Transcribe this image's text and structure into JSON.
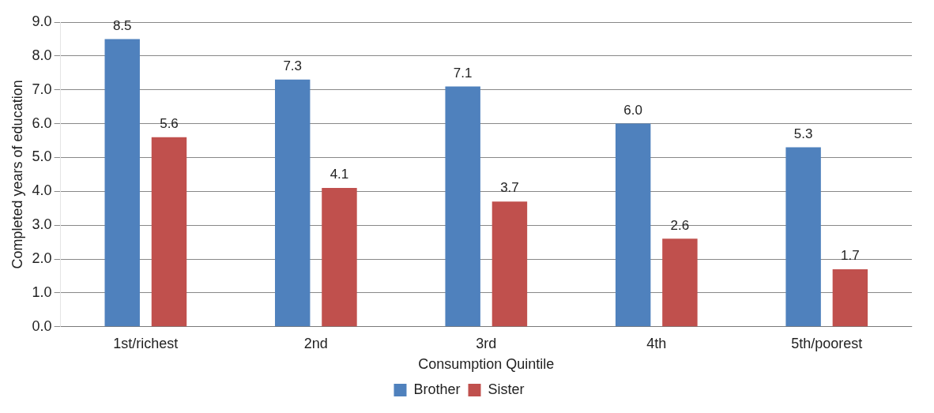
{
  "chart_data": {
    "type": "bar",
    "categories": [
      "1st/richest",
      "2nd",
      "3rd",
      "4th",
      "5th/poorest"
    ],
    "series": [
      {
        "name": "Brother",
        "color": "#4f81bd",
        "values": [
          8.5,
          7.3,
          7.1,
          6.0,
          5.3
        ],
        "value_labels": [
          "8.5",
          "7.3",
          "7.1",
          "6.0",
          "5.3"
        ]
      },
      {
        "name": "Sister",
        "color": "#c0504d",
        "values": [
          5.6,
          4.1,
          3.7,
          2.6,
          1.7
        ],
        "value_labels": [
          "5.6",
          "4.1",
          "3.7",
          "2.6",
          "1.7"
        ]
      }
    ],
    "xlabel": "Consumption Quintile",
    "ylabel": "Completed years of education",
    "ylim": [
      0,
      9
    ],
    "yticks": [
      {
        "value": 0,
        "label": "0.0"
      },
      {
        "value": 1,
        "label": "1.0"
      },
      {
        "value": 2,
        "label": "2.0"
      },
      {
        "value": 3,
        "label": "3.0"
      },
      {
        "value": 4,
        "label": "4.0"
      },
      {
        "value": 5,
        "label": "5.0"
      },
      {
        "value": 6,
        "label": "6.0"
      },
      {
        "value": 7,
        "label": "7.0"
      },
      {
        "value": 8,
        "label": "8.0"
      },
      {
        "value": 9,
        "label": "9.0"
      }
    ],
    "grid": "y",
    "legend": "bottom"
  }
}
